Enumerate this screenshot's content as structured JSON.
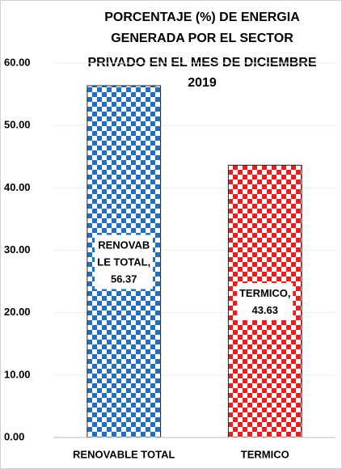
{
  "chart_data": {
    "type": "bar",
    "title": [
      "PORCENTAJE (%) DE ENERGIA",
      "GENERADA POR EL SECTOR",
      "PRIVADO EN EL MES DE DICIEMBRE",
      "2019"
    ],
    "categories": [
      "RENOVABLE TOTAL",
      "TERMICO"
    ],
    "values": [
      56.37,
      43.63
    ],
    "value_labels": [
      "RENOVAB\nLE TOTAL,\n56.37",
      "TERMICO,\n43.63"
    ],
    "colors": [
      "#1f6fc5",
      "#ee1c1c"
    ],
    "ylim": [
      0,
      60
    ],
    "yticks": [
      {
        "value": 0,
        "label": "0.00"
      },
      {
        "value": 10,
        "label": "10.00"
      },
      {
        "value": 20,
        "label": "20.00"
      },
      {
        "value": 30,
        "label": "30.00"
      },
      {
        "value": 40,
        "label": "40.00"
      },
      {
        "value": 50,
        "label": "50.00"
      },
      {
        "value": 60,
        "label": "60.00"
      }
    ],
    "grid": true
  }
}
